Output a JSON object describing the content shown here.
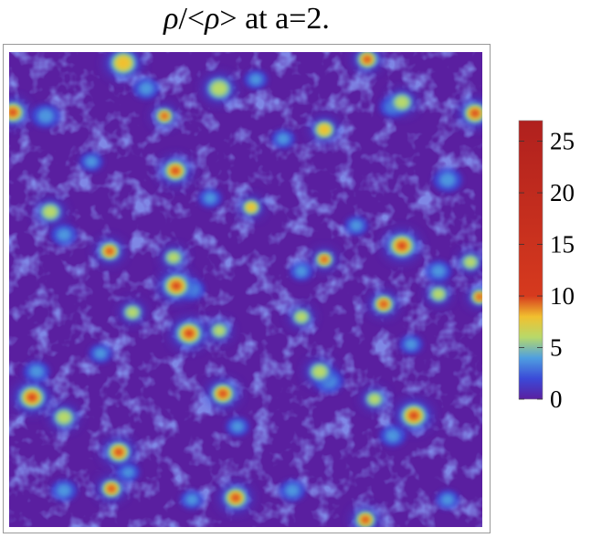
{
  "title": {
    "rho": "ρ",
    "sep": "/<",
    "rho2": "ρ",
    "rest": "> at a=2."
  },
  "chart_data": {
    "type": "heatmap",
    "title": "ρ/<ρ> at a=2.",
    "colorbar": {
      "min": 0,
      "max": 27,
      "ticks": [
        0,
        5,
        10,
        15,
        20,
        25
      ],
      "tick_labels": [
        "0",
        "5",
        "10",
        "15",
        "20",
        "25"
      ],
      "placement": "right"
    },
    "colorscale": [
      {
        "v": 0,
        "color": "#5a1fa0"
      },
      {
        "v": 2,
        "color": "#3b4ad8"
      },
      {
        "v": 4,
        "color": "#4f9fe0"
      },
      {
        "v": 6,
        "color": "#b7d96a"
      },
      {
        "v": 8,
        "color": "#f1c02f"
      },
      {
        "v": 10,
        "color": "#d63a1e"
      },
      {
        "v": 27,
        "color": "#b0201e"
      }
    ],
    "grid": false
  }
}
